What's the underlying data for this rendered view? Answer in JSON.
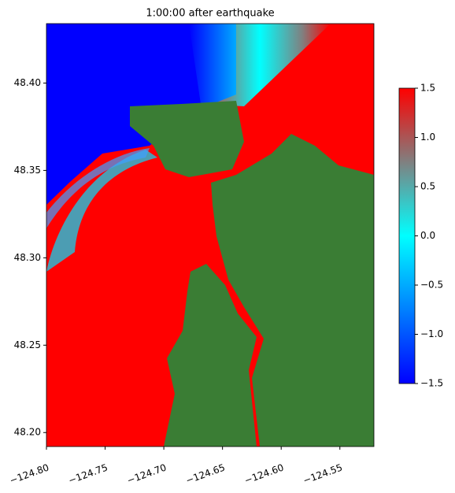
{
  "chart_data": {
    "type": "map",
    "title": "1:00:00 after earthquake",
    "xlim": [
      -124.8,
      -124.521
    ],
    "ylim": [
      48.192,
      48.434
    ],
    "xticks": [
      {
        "value": -124.8,
        "label": "−124.80"
      },
      {
        "value": -124.75,
        "label": "−124.75"
      },
      {
        "value": -124.7,
        "label": "−124.70"
      },
      {
        "value": -124.65,
        "label": "−124.65"
      },
      {
        "value": -124.6,
        "label": "−124.60"
      },
      {
        "value": -124.55,
        "label": "−124.55"
      }
    ],
    "yticks": [
      {
        "value": 48.2,
        "label": "48.20"
      },
      {
        "value": 48.25,
        "label": "48.25"
      },
      {
        "value": 48.3,
        "label": "48.30"
      },
      {
        "value": 48.35,
        "label": "48.35"
      },
      {
        "value": 48.4,
        "label": "48.40"
      }
    ],
    "colorbar": {
      "lim": [
        -1.5,
        1.5
      ],
      "ticks": [
        {
          "value": -1.5,
          "label": "−1.5"
        },
        {
          "value": -1.0,
          "label": "−1.0"
        },
        {
          "value": -0.5,
          "label": "−0.5"
        },
        {
          "value": 0.0,
          "label": "0.0"
        },
        0.5,
        {
          "value": 1.0,
          "label": "1.0"
        },
        1.5
      ],
      "colors": [
        "#0000ff",
        "#0080ff",
        "#00ffff",
        "#808080",
        "#ff0000"
      ]
    }
  }
}
